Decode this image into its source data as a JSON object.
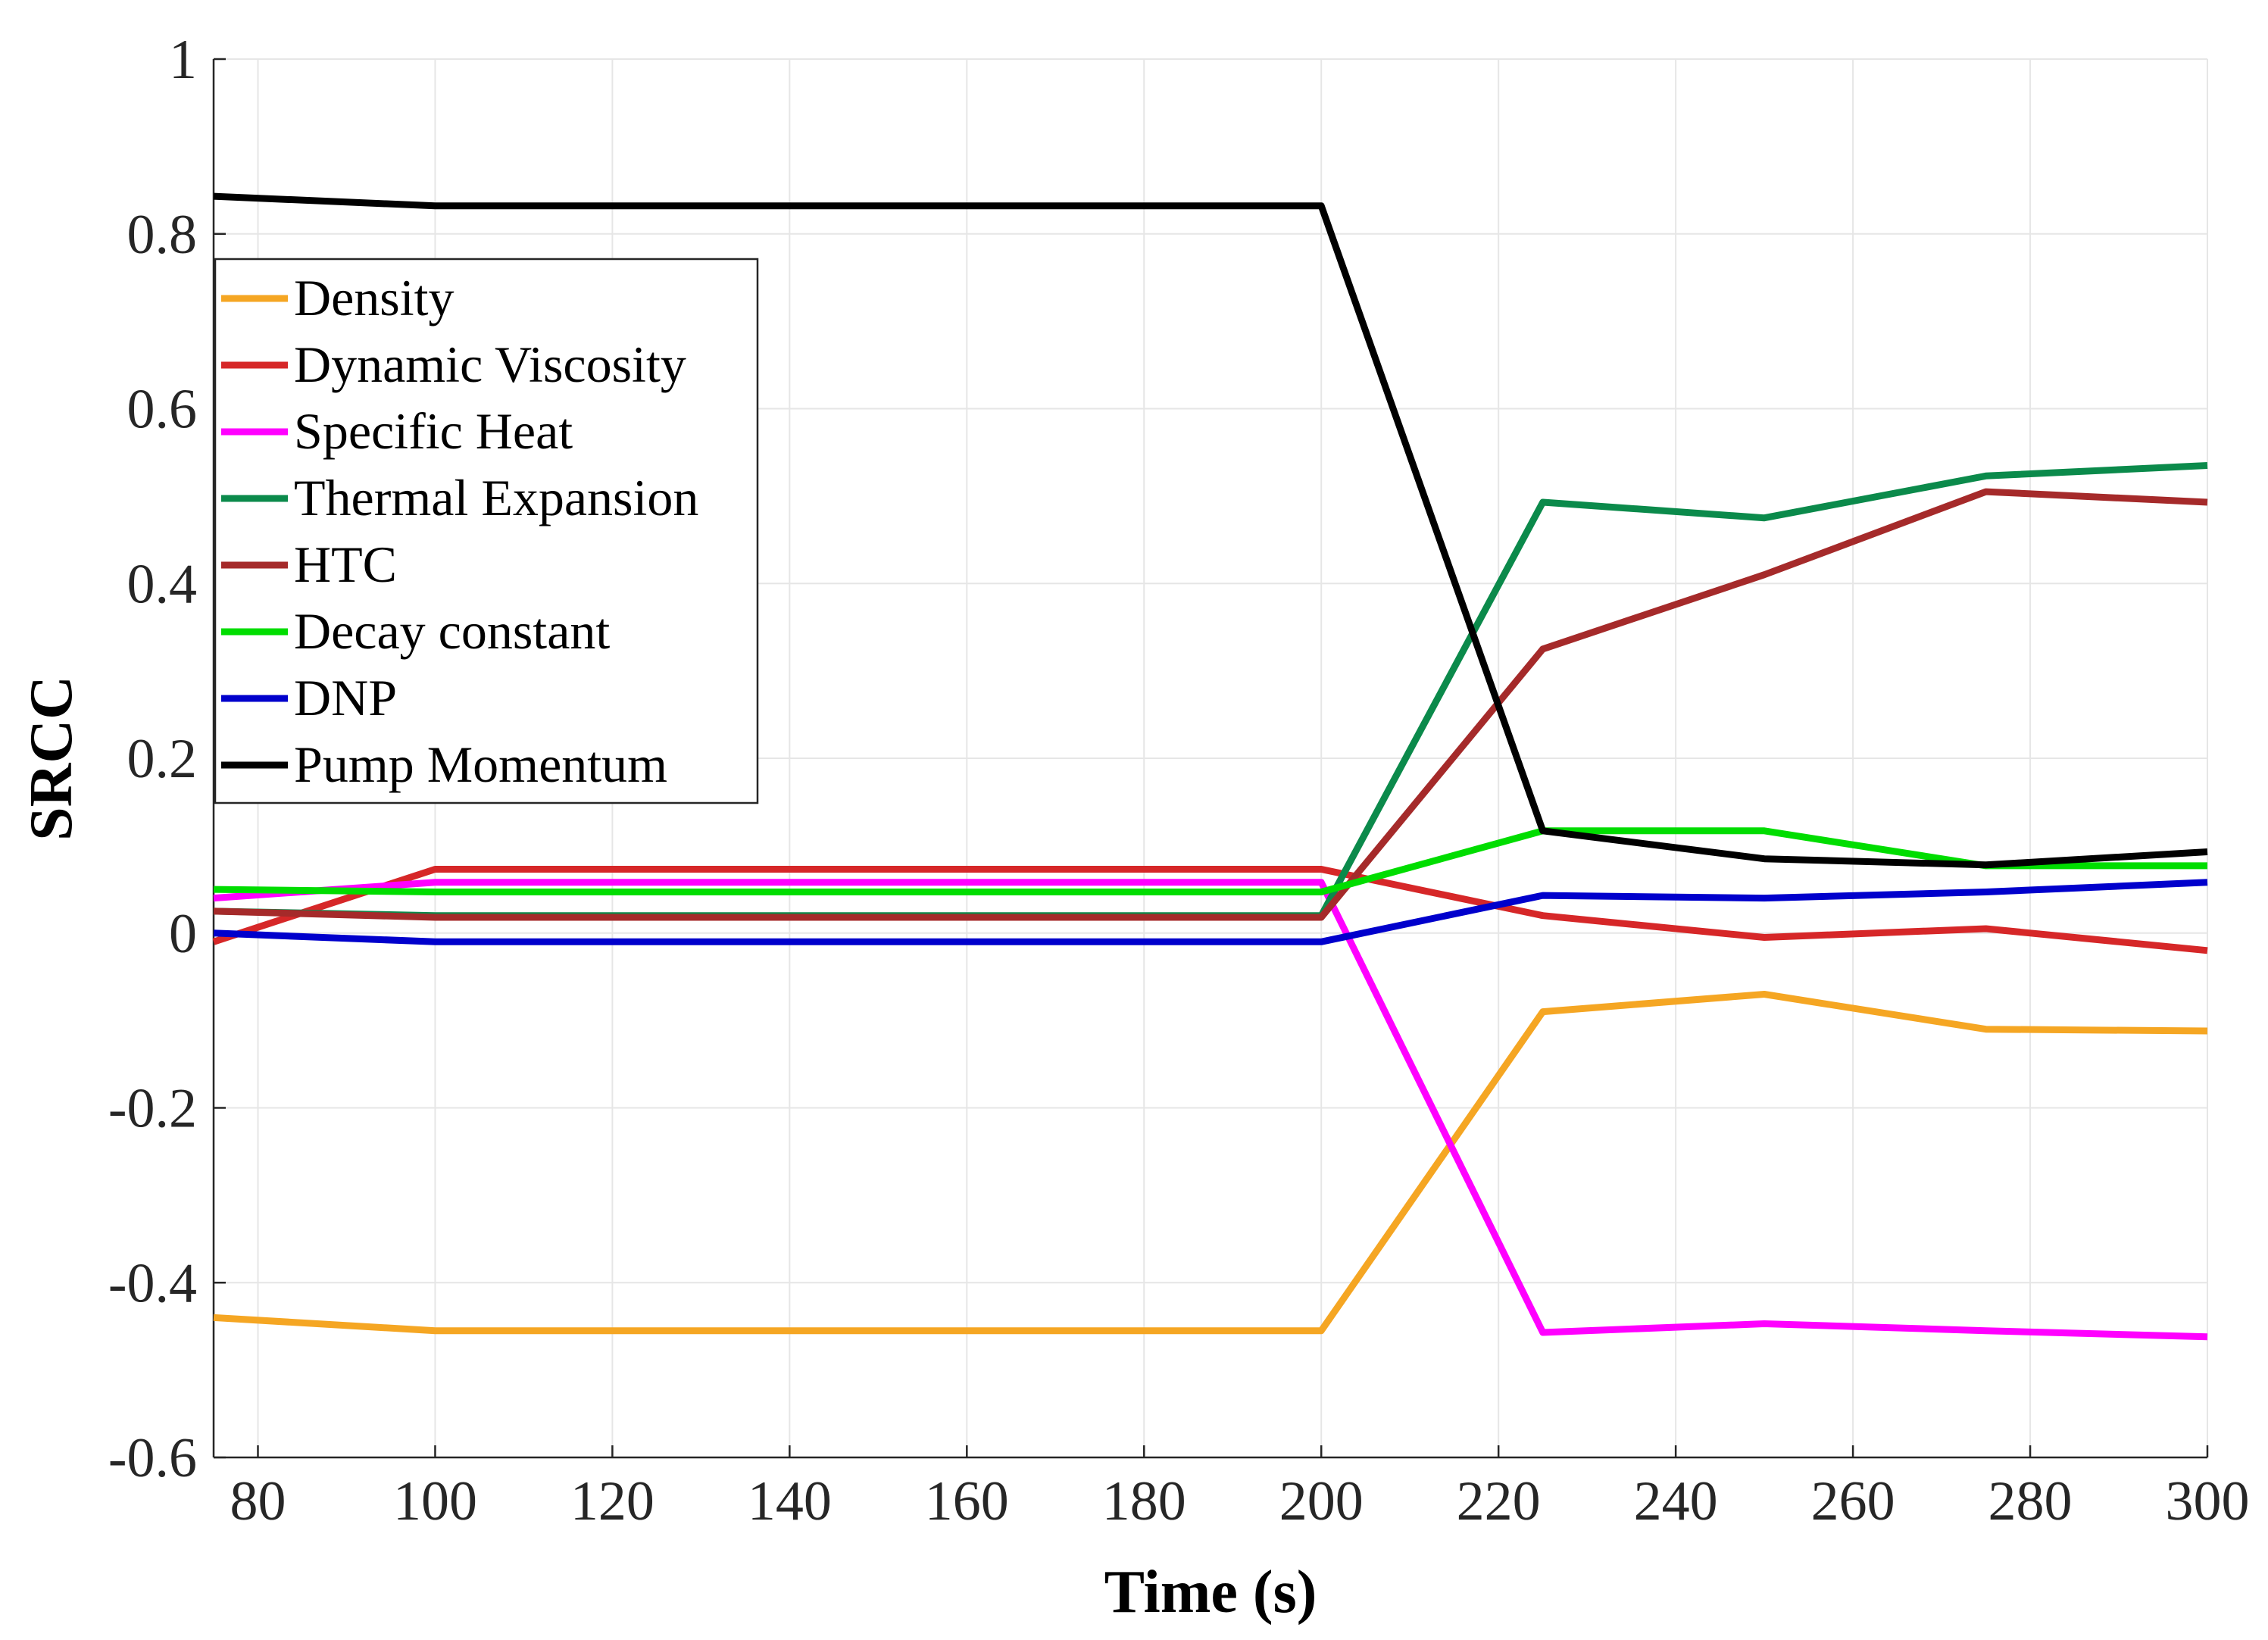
{
  "chart_data": {
    "type": "line",
    "title": "",
    "xlabel": "Time (s)",
    "ylabel": "SRCC",
    "xlim": [
      75,
      300
    ],
    "ylim": [
      -0.6,
      1
    ],
    "xticks": [
      80,
      100,
      120,
      140,
      160,
      180,
      200,
      220,
      240,
      260,
      280,
      300
    ],
    "xtick_labels": [
      "80",
      "100",
      "120",
      "140",
      "160",
      "180",
      "200",
      "220",
      "240",
      "260",
      "280",
      "300"
    ],
    "yticks": [
      -0.6,
      -0.4,
      -0.2,
      0,
      0.2,
      0.4,
      0.6,
      0.8,
      1
    ],
    "ytick_labels": [
      "-0.6",
      "-0.4",
      "-0.2",
      "0",
      "0.2",
      "0.4",
      "0.6",
      "0.8",
      "1"
    ],
    "grid": true,
    "legend_position": "upper-left",
    "x": [
      75,
      100,
      200,
      225,
      250,
      275,
      300
    ],
    "series": [
      {
        "name": "Density",
        "color": "#F5A623",
        "values": [
          -0.44,
          -0.455,
          -0.455,
          -0.09,
          -0.07,
          -0.11,
          -0.112
        ]
      },
      {
        "name": "Dynamic Viscosity",
        "color": "#D62728",
        "values": [
          -0.01,
          0.073,
          0.073,
          0.02,
          -0.005,
          0.005,
          -0.02
        ]
      },
      {
        "name": "Specific Heat",
        "color": "#FF00FF",
        "values": [
          0.04,
          0.058,
          0.058,
          -0.457,
          -0.447,
          -0.455,
          -0.462
        ]
      },
      {
        "name": "Thermal Expansion",
        "color": "#0B8A4B",
        "values": [
          0.025,
          0.02,
          0.02,
          0.493,
          0.475,
          0.523,
          0.535
        ]
      },
      {
        "name": "HTC",
        "color": "#A52A2A",
        "values": [
          0.025,
          0.018,
          0.018,
          0.325,
          0.41,
          0.505,
          0.493
        ]
      },
      {
        "name": "Decay constant",
        "color": "#00DD00",
        "values": [
          0.05,
          0.047,
          0.047,
          0.117,
          0.117,
          0.077,
          0.077
        ]
      },
      {
        "name": "DNP",
        "color": "#0000CC",
        "values": [
          0.0,
          -0.01,
          -0.01,
          0.043,
          0.04,
          0.047,
          0.058
        ]
      },
      {
        "name": "Pump Momentum",
        "color": "#000000",
        "values": [
          0.843,
          0.832,
          0.832,
          0.117,
          0.085,
          0.078,
          0.093
        ]
      }
    ]
  }
}
